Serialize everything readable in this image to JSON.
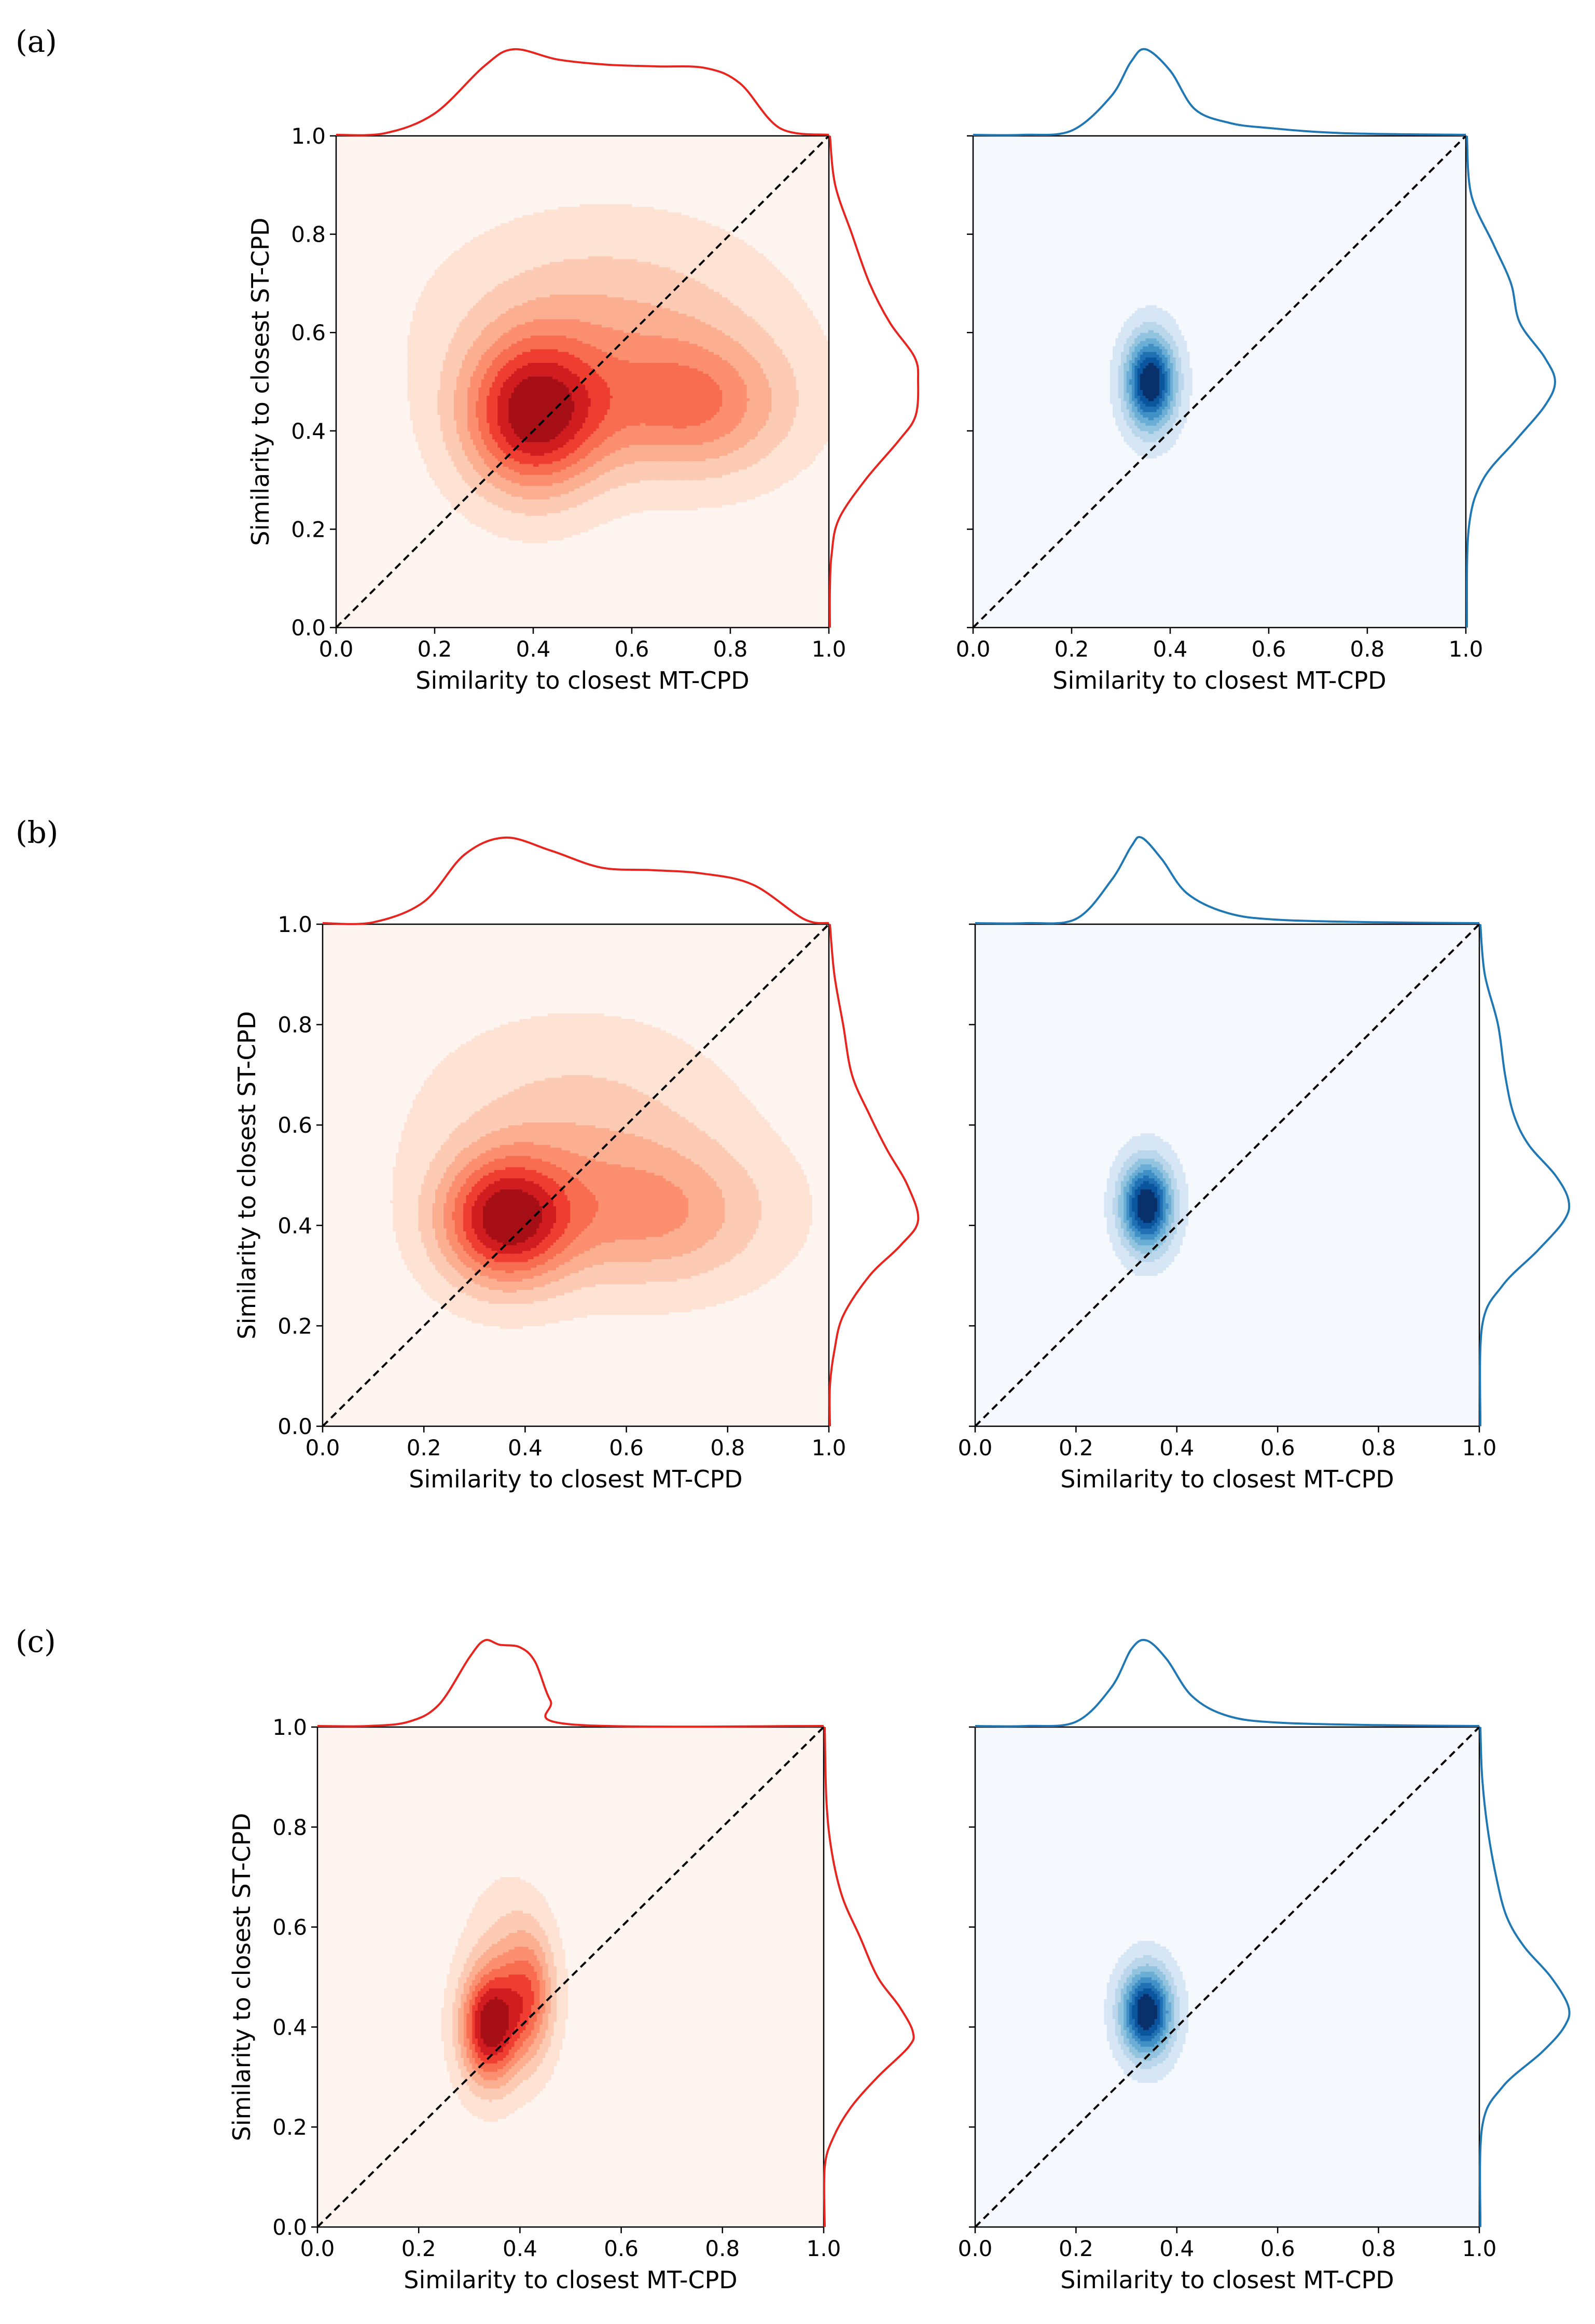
{
  "figure": {
    "panel_labels": [
      "(a)",
      "(b)",
      "(c)"
    ]
  },
  "palette": {
    "red_line": "#e8241f",
    "blue_line": "#1f77b4",
    "red_background": "#fff5f0",
    "blue_background": "#f5f9fd",
    "red_levels": [
      "#fee2d4",
      "#fdcab3",
      "#fcae91",
      "#fb8f6f",
      "#f86c50",
      "#ef3e31",
      "#d11c20",
      "#a50f15"
    ],
    "blue_levels": [
      "#d6e6f4",
      "#bad6eb",
      "#93c4df",
      "#6aaed6",
      "#4291c6",
      "#2070b4",
      "#0b559f",
      "#08306b"
    ]
  },
  "chart_data": [
    {
      "type": "kde-jointplot",
      "panel": "(a)",
      "colormap": "Reds",
      "xlabel": "Similarity to closest MT-CPD",
      "ylabel": "Similarity to closest ST-CPD",
      "xlim": [
        0.0,
        1.0
      ],
      "ylim": [
        0.0,
        1.0
      ],
      "xticks": [
        "0.0",
        "0.2",
        "0.4",
        "0.6",
        "0.8",
        "1.0"
      ],
      "yticks": [
        "0.0",
        "0.2",
        "0.4",
        "0.6",
        "0.8",
        "1.0"
      ],
      "diagonal": true,
      "density_components": [
        {
          "cx": 0.4,
          "cy": 0.43,
          "sx": 0.1,
          "sy": 0.11,
          "w": 1.0
        },
        {
          "cx": 0.72,
          "cy": 0.45,
          "sx": 0.14,
          "sy": 0.1,
          "w": 0.55
        },
        {
          "cx": 0.55,
          "cy": 0.62,
          "sx": 0.22,
          "sy": 0.14,
          "w": 0.3
        }
      ],
      "marginal_x": {
        "x": [
          0.0,
          0.1,
          0.2,
          0.3,
          0.36,
          0.45,
          0.55,
          0.65,
          0.75,
          0.82,
          0.9,
          1.0
        ],
        "density": [
          0.0,
          0.02,
          0.25,
          0.8,
          1.0,
          0.88,
          0.82,
          0.8,
          0.78,
          0.6,
          0.08,
          0.0
        ]
      },
      "marginal_y": {
        "y": [
          0.0,
          0.08,
          0.15,
          0.22,
          0.3,
          0.38,
          0.43,
          0.5,
          0.55,
          0.62,
          0.7,
          0.8,
          0.9,
          1.0
        ],
        "density": [
          0.0,
          0.0,
          0.02,
          0.1,
          0.4,
          0.78,
          0.97,
          1.0,
          0.96,
          0.68,
          0.45,
          0.25,
          0.06,
          0.0
        ]
      }
    },
    {
      "type": "kde-jointplot",
      "panel": "(a)",
      "colormap": "Blues",
      "xlabel": "Similarity to closest MT-CPD",
      "ylabel": "",
      "xlim": [
        0.0,
        1.0
      ],
      "ylim": [
        0.0,
        1.0
      ],
      "xticks": [
        "0.0",
        "0.2",
        "0.4",
        "0.6",
        "0.8",
        "1.0"
      ],
      "yticks": [],
      "diagonal": true,
      "density_components": [
        {
          "cx": 0.36,
          "cy": 0.5,
          "sx": 0.035,
          "sy": 0.065,
          "w": 1.0
        }
      ],
      "marginal_x": {
        "x": [
          0.0,
          0.1,
          0.2,
          0.28,
          0.32,
          0.35,
          0.4,
          0.45,
          0.52,
          0.6,
          0.75,
          1.0
        ],
        "density": [
          0.0,
          0.0,
          0.05,
          0.45,
          0.85,
          1.0,
          0.75,
          0.3,
          0.14,
          0.08,
          0.02,
          0.0
        ]
      },
      "marginal_y": {
        "y": [
          0.0,
          0.2,
          0.3,
          0.38,
          0.45,
          0.5,
          0.55,
          0.62,
          0.7,
          0.78,
          0.88,
          1.0
        ],
        "density": [
          0.0,
          0.02,
          0.18,
          0.55,
          0.88,
          1.0,
          0.88,
          0.6,
          0.5,
          0.3,
          0.05,
          0.0
        ]
      }
    },
    {
      "type": "kde-jointplot",
      "panel": "(b)",
      "colormap": "Reds",
      "xlabel": "Similarity to closest MT-CPD",
      "ylabel": "Similarity to closest ST-CPD",
      "xlim": [
        0.0,
        1.0
      ],
      "ylim": [
        0.0,
        1.0
      ],
      "xticks": [
        "0.0",
        "0.2",
        "0.4",
        "0.6",
        "0.8",
        "1.0"
      ],
      "yticks": [
        "0.0",
        "0.2",
        "0.4",
        "0.6",
        "0.8",
        "1.0"
      ],
      "diagonal": true,
      "density_components": [
        {
          "cx": 0.36,
          "cy": 0.41,
          "sx": 0.09,
          "sy": 0.09,
          "w": 1.0
        },
        {
          "cx": 0.65,
          "cy": 0.42,
          "sx": 0.16,
          "sy": 0.1,
          "w": 0.45
        },
        {
          "cx": 0.5,
          "cy": 0.6,
          "sx": 0.2,
          "sy": 0.14,
          "w": 0.25
        }
      ],
      "marginal_x": {
        "x": [
          0.0,
          0.1,
          0.2,
          0.28,
          0.36,
          0.45,
          0.55,
          0.65,
          0.75,
          0.85,
          0.95,
          1.0
        ],
        "density": [
          0.0,
          0.01,
          0.25,
          0.8,
          1.0,
          0.85,
          0.65,
          0.62,
          0.58,
          0.45,
          0.05,
          0.0
        ]
      },
      "marginal_y": {
        "y": [
          0.0,
          0.08,
          0.15,
          0.22,
          0.3,
          0.36,
          0.41,
          0.48,
          0.55,
          0.62,
          0.7,
          0.8,
          0.9,
          1.0
        ],
        "density": [
          0.0,
          0.0,
          0.05,
          0.15,
          0.45,
          0.8,
          1.0,
          0.88,
          0.65,
          0.45,
          0.25,
          0.15,
          0.05,
          0.0
        ]
      }
    },
    {
      "type": "kde-jointplot",
      "panel": "(b)",
      "colormap": "Blues",
      "xlabel": "Similarity to closest MT-CPD",
      "ylabel": "",
      "xlim": [
        0.0,
        1.0
      ],
      "ylim": [
        0.0,
        1.0
      ],
      "xticks": [
        "0.0",
        "0.2",
        "0.4",
        "0.6",
        "0.8",
        "1.0"
      ],
      "yticks": [],
      "diagonal": true,
      "density_components": [
        {
          "cx": 0.34,
          "cy": 0.44,
          "sx": 0.035,
          "sy": 0.06,
          "w": 1.0
        }
      ],
      "marginal_x": {
        "x": [
          0.0,
          0.1,
          0.2,
          0.27,
          0.31,
          0.33,
          0.37,
          0.42,
          0.5,
          0.6,
          0.8,
          1.0
        ],
        "density": [
          0.0,
          0.0,
          0.05,
          0.5,
          0.9,
          1.0,
          0.75,
          0.35,
          0.12,
          0.04,
          0.01,
          0.0
        ]
      },
      "marginal_y": {
        "y": [
          0.0,
          0.2,
          0.28,
          0.35,
          0.41,
          0.45,
          0.5,
          0.56,
          0.62,
          0.7,
          0.8,
          0.9,
          1.0
        ],
        "density": [
          0.0,
          0.02,
          0.25,
          0.65,
          0.95,
          1.0,
          0.85,
          0.55,
          0.38,
          0.28,
          0.2,
          0.05,
          0.0
        ]
      }
    },
    {
      "type": "kde-jointplot",
      "panel": "(c)",
      "colormap": "Reds",
      "xlabel": "Similarity to closest MT-CPD",
      "ylabel": "Similarity to closest ST-CPD",
      "xlim": [
        0.0,
        1.0
      ],
      "ylim": [
        0.0,
        1.0
      ],
      "xticks": [
        "0.0",
        "0.2",
        "0.4",
        "0.6",
        "0.8",
        "1.0"
      ],
      "yticks": [
        "0.0",
        "0.2",
        "0.4",
        "0.6",
        "0.8",
        "1.0"
      ],
      "diagonal": true,
      "density_components": [
        {
          "cx": 0.34,
          "cy": 0.4,
          "sx": 0.04,
          "sy": 0.08,
          "w": 1.0
        },
        {
          "cx": 0.42,
          "cy": 0.46,
          "sx": 0.035,
          "sy": 0.09,
          "w": 0.55
        },
        {
          "cx": 0.37,
          "cy": 0.55,
          "sx": 0.05,
          "sy": 0.1,
          "w": 0.18
        }
      ],
      "marginal_x": {
        "x": [
          0.0,
          0.1,
          0.18,
          0.24,
          0.3,
          0.33,
          0.36,
          0.4,
          0.43,
          0.46,
          0.5,
          1.0
        ],
        "density": [
          0.0,
          0.0,
          0.05,
          0.25,
          0.8,
          1.0,
          0.95,
          0.92,
          0.75,
          0.3,
          0.02,
          0.0
        ]
      },
      "marginal_y": {
        "y": [
          0.0,
          0.12,
          0.18,
          0.24,
          0.3,
          0.36,
          0.39,
          0.44,
          0.5,
          0.58,
          0.66,
          0.75,
          0.85,
          1.0
        ],
        "density": [
          0.0,
          0.0,
          0.1,
          0.3,
          0.6,
          0.95,
          1.0,
          0.85,
          0.6,
          0.4,
          0.2,
          0.08,
          0.02,
          0.0
        ]
      }
    },
    {
      "type": "kde-jointplot",
      "panel": "(c)",
      "colormap": "Blues",
      "xlabel": "Similarity to closest MT-CPD",
      "ylabel": "",
      "xlim": [
        0.0,
        1.0
      ],
      "ylim": [
        0.0,
        1.0
      ],
      "xticks": [
        "0.0",
        "0.2",
        "0.4",
        "0.6",
        "0.8",
        "1.0"
      ],
      "yticks": [],
      "diagonal": true,
      "density_components": [
        {
          "cx": 0.34,
          "cy": 0.43,
          "sx": 0.035,
          "sy": 0.06,
          "w": 1.0
        }
      ],
      "marginal_x": {
        "x": [
          0.0,
          0.1,
          0.2,
          0.27,
          0.31,
          0.34,
          0.38,
          0.43,
          0.5,
          0.6,
          0.8,
          1.0
        ],
        "density": [
          0.0,
          0.0,
          0.05,
          0.45,
          0.9,
          1.0,
          0.78,
          0.35,
          0.12,
          0.04,
          0.01,
          0.0
        ]
      },
      "marginal_y": {
        "y": [
          0.0,
          0.2,
          0.28,
          0.35,
          0.4,
          0.44,
          0.5,
          0.56,
          0.62,
          0.7,
          0.8,
          0.9,
          1.0
        ],
        "density": [
          0.0,
          0.02,
          0.25,
          0.7,
          0.95,
          1.0,
          0.8,
          0.5,
          0.3,
          0.18,
          0.08,
          0.02,
          0.0
        ]
      }
    }
  ]
}
